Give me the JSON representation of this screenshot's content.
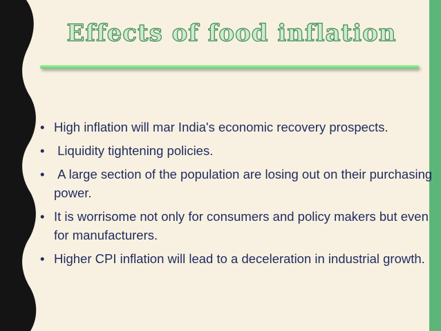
{
  "title": "Effects of food inflation",
  "bullets": [
    "High inflation will mar India's economic recovery prospects.",
    " Liquidity tightening policies.",
    " A large section of the population are losing out on their purchasing power.",
    "It is worrisome not only for consumers and policy makers but even for manufacturers.",
    "Higher CPI inflation will lead to a deceleration in industrial growth."
  ]
}
